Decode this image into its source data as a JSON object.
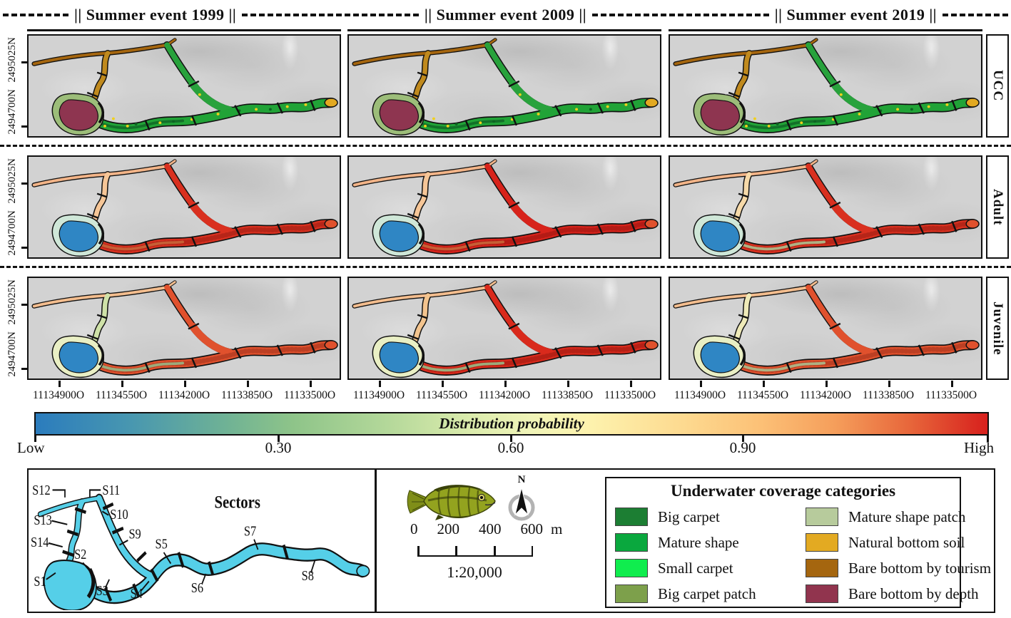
{
  "header": {
    "events": [
      "|| Summer event 1999 ||",
      "|| Summer event 2009 ||",
      "|| Summer event 2019 ||"
    ]
  },
  "rows": [
    {
      "label": "UCC"
    },
    {
      "label": "Adult"
    },
    {
      "label": "Juvenile"
    }
  ],
  "axes": {
    "y_labels": [
      "2494700N",
      "2495025N"
    ],
    "x_ticks": [
      "11134900O",
      "11134550O",
      "11134200O",
      "11133850O",
      "11133500O"
    ]
  },
  "colorbar": {
    "title": "Distribution probability",
    "tick_labels": [
      "Low",
      "0.30",
      "0.60",
      "0.90",
      "High"
    ],
    "gradient": [
      "#2b7cbd 0%",
      "#4897b0 10%",
      "#6fb295 20%",
      "#8ec489 27%",
      "#b4d89a 37%",
      "#dcecad 46%",
      "#f0f4b8 52%",
      "#fdf3ae 58%",
      "#fdda90 68%",
      "#fcc177 76%",
      "#f59e5b 84%",
      "#e7653a 92%",
      "#d7201d 100%"
    ]
  },
  "sectors": {
    "title": "Sectors",
    "labels": [
      "S1",
      "S2",
      "S3",
      "S4",
      "S5",
      "S6",
      "S7",
      "S8",
      "S9",
      "S10",
      "S11",
      "S12",
      "S13",
      "S14"
    ],
    "water_color": "#55cfe8"
  },
  "scalebar": {
    "north_label": "N",
    "tick_labels": [
      "0",
      "200",
      "400",
      "600"
    ],
    "unit": "m",
    "ratio": "1:20,000"
  },
  "legend": {
    "title": "Underwater coverage categories",
    "items": [
      {
        "label": "Big carpet",
        "color": "#1c7e33"
      },
      {
        "label": "Mature shape",
        "color": "#0aa83e"
      },
      {
        "label": "Small carpet",
        "color": "#10ed4e"
      },
      {
        "label": "Big carpet patch",
        "color": "#7da04b"
      },
      {
        "label": "Mature shape patch",
        "color": "#b7cb9c"
      },
      {
        "label": "Natural bottom soil",
        "color": "#e3aa22"
      },
      {
        "label": "Bare bottom by tourism",
        "color": "#a5660f"
      },
      {
        "label": "Bare bottom by depth",
        "color": "#91344e"
      }
    ]
  },
  "map_styles": {
    "ucc": {
      "branch": "#a5660f",
      "arm": "#c08a1e",
      "loop": "#28a23c",
      "lagoon": "#8e3550",
      "lagoon_rim": "#9cbd79",
      "channel": "#21a337",
      "channel_inner": "#137029",
      "end_blob": "#e2a921",
      "texture": false,
      "speckles": true
    },
    "adult": {
      "branch": "#f2b488",
      "arm": "#f6c697",
      "loop": "#d9301f",
      "lagoon": "#2f86c4",
      "lagoon_rim": "#cfe7d8",
      "channel": "#d9301f",
      "channel_inner": "#ee7a45",
      "end_blob": "#e0512d",
      "texture": true,
      "speckles": false
    },
    "juvenile": {
      "branch": "#f3bd8e",
      "arm": "#cfe2a8",
      "loop": "#e0512d",
      "lagoon": "#2f86c4",
      "lagoon_rim": "#e9efc4",
      "channel": "#e0512d",
      "channel_inner": "#b8dc9e",
      "end_blob": "#e0512d",
      "texture": true,
      "speckles": false
    }
  },
  "panels": [
    {
      "row": "ucc",
      "year": "1999"
    },
    {
      "row": "ucc",
      "year": "2009"
    },
    {
      "row": "ucc",
      "year": "2019"
    },
    {
      "row": "adult",
      "year": "1999"
    },
    {
      "row": "adult",
      "year": "2009",
      "overrides": {
        "channel": "#d7231b",
        "loop": "#d7231b"
      }
    },
    {
      "row": "adult",
      "year": "2019",
      "overrides": {
        "channel_inner": "#cfe3a8",
        "arm": "#f6d9a8"
      }
    },
    {
      "row": "juvenile",
      "year": "1999"
    },
    {
      "row": "juvenile",
      "year": "2009",
      "overrides": {
        "channel": "#d92a1c",
        "loop": "#d92a1c",
        "arm": "#f3c48e"
      }
    },
    {
      "row": "juvenile",
      "year": "2019",
      "overrides": {
        "arm": "#efeab8",
        "channel_inner": "#cfe3a8"
      }
    }
  ]
}
